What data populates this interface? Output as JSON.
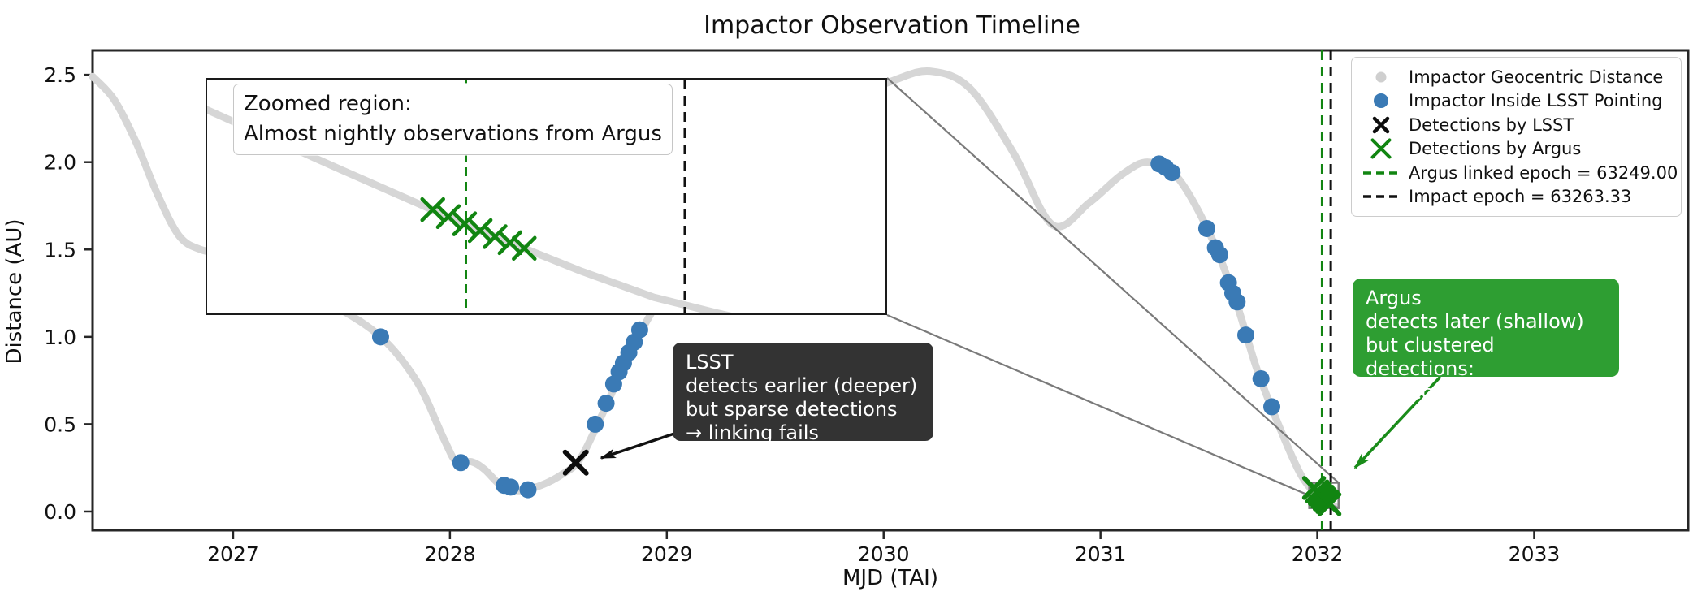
{
  "title": "Impactor Observation Timeline",
  "axes": {
    "xlabel": "MJD (TAI)",
    "ylabel": "Distance (AU)",
    "x_ticks": [
      2027,
      2028,
      2029,
      2030,
      2031,
      2032,
      2033
    ],
    "y_ticks": [
      "0.0",
      "0.5",
      "1.0",
      "1.5",
      "2.0",
      "2.5"
    ],
    "x_range": [
      2026.352,
      2033.71
    ],
    "y_range": [
      -0.107,
      2.64
    ]
  },
  "chart_data": {
    "type": "line",
    "title": "Impactor Observation Timeline",
    "xlabel": "MJD (TAI)",
    "ylabel": "Distance (AU)",
    "xlim": [
      2026.352,
      2033.71
    ],
    "ylim": [
      -0.107,
      2.64
    ],
    "grid": false,
    "legend_position": "upper right",
    "series": [
      {
        "name": "Impactor Geocentric Distance",
        "style": "thick-light-gray-line",
        "points": [
          [
            2026.352,
            2.49
          ],
          [
            2026.45,
            2.36
          ],
          [
            2026.55,
            2.12
          ],
          [
            2026.65,
            1.82
          ],
          [
            2026.75,
            1.58
          ],
          [
            2026.85,
            1.5
          ],
          [
            2027.0,
            1.46
          ],
          [
            2027.2,
            1.35
          ],
          [
            2027.45,
            1.19
          ],
          [
            2027.68,
            1.0
          ],
          [
            2027.85,
            0.74
          ],
          [
            2027.97,
            0.42
          ],
          [
            2028.03,
            0.285
          ],
          [
            2028.1,
            0.285
          ],
          [
            2028.16,
            0.24
          ],
          [
            2028.24,
            0.145
          ],
          [
            2028.32,
            0.12
          ],
          [
            2028.42,
            0.15
          ],
          [
            2028.52,
            0.215
          ],
          [
            2028.6,
            0.3
          ],
          [
            2028.7,
            0.55
          ],
          [
            2028.82,
            0.88
          ],
          [
            2028.95,
            1.18
          ],
          [
            2029.2,
            1.65
          ],
          [
            2029.5,
            2.05
          ],
          [
            2029.8,
            2.33
          ],
          [
            2030.05,
            2.47
          ],
          [
            2030.22,
            2.52
          ],
          [
            2030.4,
            2.42
          ],
          [
            2030.6,
            2.05
          ],
          [
            2030.78,
            1.64
          ],
          [
            2030.95,
            1.77
          ],
          [
            2031.1,
            1.93
          ],
          [
            2031.22,
            2.0
          ],
          [
            2031.35,
            1.92
          ],
          [
            2031.5,
            1.6
          ],
          [
            2031.62,
            1.22
          ],
          [
            2031.72,
            0.82
          ],
          [
            2031.82,
            0.5
          ],
          [
            2031.92,
            0.22
          ],
          [
            2032.0,
            0.09
          ],
          [
            2032.05,
            0.045
          ],
          [
            2032.08,
            0.03
          ]
        ]
      },
      {
        "name": "Impactor Inside LSST Pointing",
        "style": "blue-dot",
        "points": [
          [
            2027.68,
            1.0
          ],
          [
            2028.05,
            0.28
          ],
          [
            2028.25,
            0.15
          ],
          [
            2028.28,
            0.14
          ],
          [
            2028.36,
            0.125
          ],
          [
            2028.67,
            0.5
          ],
          [
            2028.72,
            0.62
          ],
          [
            2028.755,
            0.73
          ],
          [
            2028.78,
            0.8
          ],
          [
            2028.8,
            0.85
          ],
          [
            2028.825,
            0.91
          ],
          [
            2028.85,
            0.97
          ],
          [
            2028.875,
            1.04
          ],
          [
            2031.27,
            1.99
          ],
          [
            2031.3,
            1.97
          ],
          [
            2031.33,
            1.94
          ],
          [
            2031.49,
            1.62
          ],
          [
            2031.53,
            1.51
          ],
          [
            2031.55,
            1.47
          ],
          [
            2031.59,
            1.31
          ],
          [
            2031.61,
            1.25
          ],
          [
            2031.63,
            1.2
          ],
          [
            2031.67,
            1.01
          ],
          [
            2031.74,
            0.76
          ],
          [
            2031.79,
            0.6
          ]
        ]
      },
      {
        "name": "Detections by LSST",
        "style": "black-x",
        "points": [
          [
            2028.58,
            0.28
          ]
        ]
      },
      {
        "name": "Detections by Argus",
        "style": "green-X",
        "points": [
          [
            2031.985,
            0.135
          ],
          [
            2032.0,
            0.115
          ],
          [
            2032.012,
            0.1
          ],
          [
            2032.024,
            0.085
          ],
          [
            2032.034,
            0.07
          ],
          [
            2032.046,
            0.055
          ],
          [
            2032.056,
            0.042
          ]
        ]
      }
    ],
    "vlines": [
      {
        "name": "Argus linked epoch",
        "mjd": "63249.00",
        "x_year": 2032.022,
        "color": "#118511",
        "dash": true
      },
      {
        "name": "Impact epoch",
        "mjd": "63263.33",
        "x_year": 2032.062,
        "color": "#111111",
        "dash": true
      }
    ],
    "zoom_indicator": {
      "x0_year": 2031.963,
      "x1_year": 2032.098,
      "y0_au": 0.02,
      "y1_au": 0.165
    }
  },
  "legend": {
    "items": [
      {
        "marker": "dot-lightgray",
        "label": "Impactor Geocentric Distance"
      },
      {
        "marker": "dot-blue",
        "label": "Impactor Inside LSST Pointing"
      },
      {
        "marker": "x-black",
        "label": "Detections by LSST"
      },
      {
        "marker": "X-green",
        "label": "Detections by Argus"
      },
      {
        "marker": "dash-green",
        "label": "Argus linked epoch = 63249.00"
      },
      {
        "marker": "dash-black",
        "label": "Impact epoch = 63263.33"
      }
    ]
  },
  "annotations": {
    "lsst_box": "LSST\n detects earlier (deeper)\n but sparse detections\n → linking fails",
    "argus_box": "Argus\n detects later (shallow)\nbut clustered detections:\n → successfully linked",
    "inset_label": "Zoomed region:\nAlmost nightly observations from Argus"
  },
  "inset": {
    "line_fractions": [
      [
        0,
        0.13
      ],
      [
        0.2,
        0.39
      ],
      [
        0.4,
        0.645
      ],
      [
        0.55,
        0.82
      ],
      [
        0.66,
        0.935
      ],
      [
        0.75,
        1.0
      ],
      [
        0.84,
        1.06
      ]
    ],
    "argus_x_fractions": [
      [
        0.333,
        0.558
      ],
      [
        0.356,
        0.588
      ],
      [
        0.38,
        0.619
      ],
      [
        0.403,
        0.648
      ],
      [
        0.425,
        0.674
      ],
      [
        0.447,
        0.7
      ],
      [
        0.468,
        0.724
      ]
    ],
    "green_dash_fx": 0.382,
    "black_dash_fx": 0.705
  },
  "colors": {
    "curve": "#d6d6d6",
    "blue": "#3a7ab5",
    "green_marker": "#118511",
    "green_box": "#2e9e32",
    "dark_box": "#333333",
    "black": "#111111",
    "connector_gray": "#7a7a7a"
  }
}
